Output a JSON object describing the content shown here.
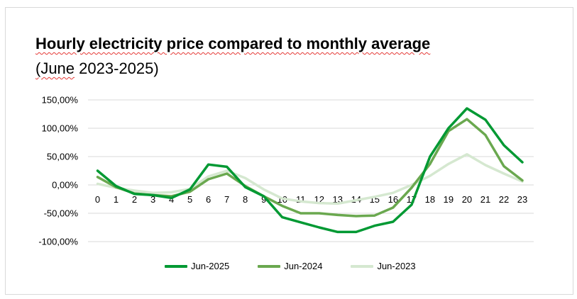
{
  "chart_data": {
    "type": "line",
    "title": "Hourly electricity price compared to monthly average",
    "subtitle_prefix": "(June",
    "subtitle_range": "2023-2025)",
    "xlabel": "",
    "ylabel": "",
    "x": [
      0,
      1,
      2,
      3,
      4,
      5,
      6,
      7,
      8,
      9,
      10,
      11,
      12,
      13,
      14,
      15,
      16,
      17,
      18,
      19,
      20,
      21,
      22,
      23
    ],
    "ylim": [
      -100,
      150
    ],
    "yticks": [
      150,
      100,
      50,
      0,
      -50,
      -100
    ],
    "ytick_labels": [
      "150,00%",
      "100,00%",
      "50,00%",
      "0,00%",
      "-50,00%",
      "-100,00%"
    ],
    "grid": true,
    "legend_position": "bottom",
    "series": [
      {
        "name": "Jun-2025",
        "color": "#009933",
        "values": [
          25,
          -2,
          -16,
          -18,
          -23,
          -8,
          36,
          32,
          -4,
          -20,
          -57,
          -66,
          -75,
          -83,
          -83,
          -72,
          -65,
          -35,
          50,
          100,
          135,
          115,
          70,
          40
        ]
      },
      {
        "name": "Jun-2024",
        "color": "#6aa84f",
        "values": [
          14,
          -4,
          -15,
          -18,
          -20,
          -12,
          10,
          20,
          -2,
          -20,
          -37,
          -50,
          -50,
          -53,
          -55,
          -54,
          -40,
          -5,
          37,
          95,
          116,
          88,
          33,
          8
        ]
      },
      {
        "name": "Jun-2023",
        "color": "#d5e8d0",
        "values": [
          2,
          -5,
          -10,
          -14,
          -13,
          -7,
          15,
          25,
          12,
          -8,
          -24,
          -29,
          -32,
          -33,
          -27,
          -21,
          -14,
          0,
          16,
          37,
          54,
          35,
          20,
          6
        ]
      }
    ]
  }
}
